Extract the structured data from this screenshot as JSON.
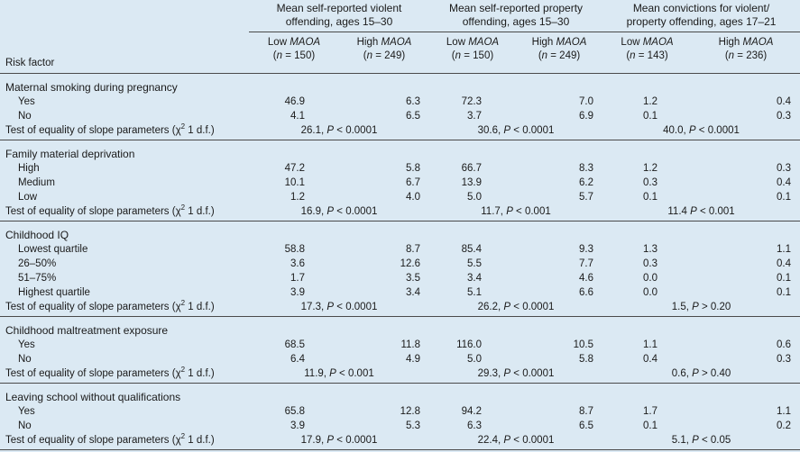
{
  "header": {
    "risk_factor_label": "Risk factor",
    "groups": [
      {
        "line1": "Mean self-reported violent",
        "line2": "offending, ages 15–30"
      },
      {
        "line1": "Mean self-reported property",
        "line2": "offending, ages 15–30"
      },
      {
        "line1": "Mean convictions for violent/",
        "line2": "property offending, ages 17–21"
      }
    ],
    "subcols": [
      {
        "prefix": "Low ",
        "gene": "MAOA",
        "n": "150"
      },
      {
        "prefix": "High ",
        "gene": "MAOA",
        "n": "249"
      },
      {
        "prefix": "Low ",
        "gene": "MAOA",
        "n": "150"
      },
      {
        "prefix": "High ",
        "gene": "MAOA",
        "n": "249"
      },
      {
        "prefix": "Low ",
        "gene": "MAOA",
        "n": "143"
      },
      {
        "prefix": "High ",
        "gene": "MAOA",
        "n": "236"
      }
    ],
    "n_label": "n",
    "n_eq": " = "
  },
  "test_label": {
    "prefix": "Test of equality of slope parameters (",
    "chi": "χ",
    "sup": "2",
    "suffix": " 1 d.f.)"
  },
  "p_label": "P",
  "sections": [
    {
      "title": "Maternal smoking during pregnancy",
      "rows": [
        {
          "label": "Yes",
          "values": [
            "46.9",
            "6.3",
            "72.3",
            "7.0",
            "1.2",
            "0.4"
          ]
        },
        {
          "label": "No",
          "values": [
            "4.1",
            "6.5",
            "3.7",
            "6.9",
            "0.1",
            "0.3"
          ]
        }
      ],
      "tests": [
        {
          "stat": "26.1, ",
          "op": " < ",
          "p": "0.0001"
        },
        {
          "stat": "30.6, ",
          "op": " < ",
          "p": "0.0001"
        },
        {
          "stat": "40.0, ",
          "op": " < ",
          "p": "0.0001"
        }
      ]
    },
    {
      "title": "Family material deprivation",
      "rows": [
        {
          "label": "High",
          "values": [
            "47.2",
            "5.8",
            "66.7",
            "8.3",
            "1.2",
            "0.3"
          ]
        },
        {
          "label": "Medium",
          "values": [
            "10.1",
            "6.7",
            "13.9",
            "6.2",
            "0.3",
            "0.4"
          ]
        },
        {
          "label": "Low",
          "values": [
            "1.2",
            "4.0",
            "5.0",
            "5.7",
            "0.1",
            "0.1"
          ]
        }
      ],
      "tests": [
        {
          "stat": "16.9, ",
          "op": " < ",
          "p": "0.0001"
        },
        {
          "stat": "11.7, ",
          "op": " < ",
          "p": "0.001"
        },
        {
          "stat": "11.4 ",
          "op": " < ",
          "p": "0.001"
        }
      ]
    },
    {
      "title": "Childhood IQ",
      "rows": [
        {
          "label": "Lowest quartile",
          "values": [
            "58.8",
            "8.7",
            "85.4",
            "9.3",
            "1.3",
            "1.1"
          ]
        },
        {
          "label": "26–50%",
          "values": [
            "3.6",
            "12.6",
            "5.5",
            "7.7",
            "0.3",
            "0.4"
          ]
        },
        {
          "label": "51–75%",
          "values": [
            "1.7",
            "3.5",
            "3.4",
            "4.6",
            "0.0",
            "0.1"
          ]
        },
        {
          "label": "Highest quartile",
          "values": [
            "3.9",
            "3.4",
            "5.1",
            "6.6",
            "0.0",
            "0.1"
          ]
        }
      ],
      "tests": [
        {
          "stat": "17.3, ",
          "op": " < ",
          "p": "0.0001"
        },
        {
          "stat": "26.2, ",
          "op": " < ",
          "p": "0.0001"
        },
        {
          "stat": "1.5, ",
          "op": " > ",
          "p": "0.20"
        }
      ]
    },
    {
      "title": "Childhood maltreatment exposure",
      "rows": [
        {
          "label": "Yes",
          "values": [
            "68.5",
            "11.8",
            "116.0",
            "10.5",
            "1.1",
            "0.6"
          ]
        },
        {
          "label": "No",
          "values": [
            "6.4",
            "4.9",
            "5.0",
            "5.8",
            "0.4",
            "0.3"
          ]
        }
      ],
      "tests": [
        {
          "stat": "11.9, ",
          "op": " < ",
          "p": "0.001"
        },
        {
          "stat": "29.3, ",
          "op": " < ",
          "p": "0.0001"
        },
        {
          "stat": "0.6, ",
          "op": " > ",
          "p": "0.40"
        }
      ]
    },
    {
      "title": "Leaving school without qualifications",
      "rows": [
        {
          "label": "Yes",
          "values": [
            "65.8",
            "12.8",
            "94.2",
            "8.7",
            "1.7",
            "1.1"
          ]
        },
        {
          "label": "No",
          "values": [
            "3.9",
            "5.3",
            "6.3",
            "6.5",
            "0.1",
            "0.2"
          ]
        }
      ],
      "tests": [
        {
          "stat": "17.9, ",
          "op": " < ",
          "p": "0.0001"
        },
        {
          "stat": "22.4, ",
          "op": " < ",
          "p": "0.0001"
        },
        {
          "stat": "5.1, ",
          "op": " < ",
          "p": "0.05"
        }
      ]
    }
  ]
}
